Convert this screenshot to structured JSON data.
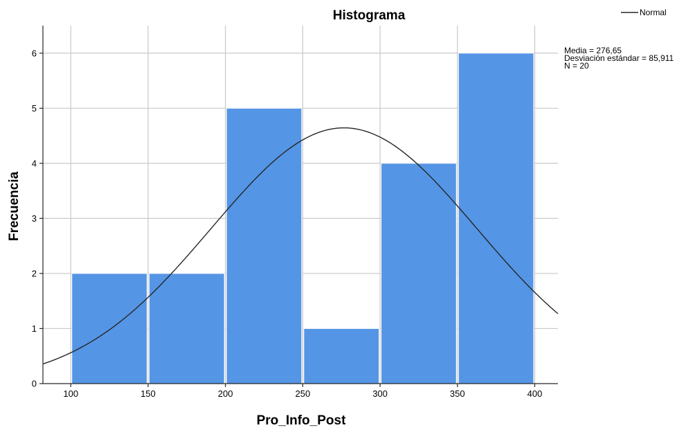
{
  "chart_data": {
    "type": "bar",
    "title": "Histograma",
    "xlabel": "Pro_Info_Post",
    "ylabel": "Frecuencia",
    "bins": [
      {
        "from": 100,
        "to": 150,
        "count": 2
      },
      {
        "from": 150,
        "to": 200,
        "count": 2
      },
      {
        "from": 200,
        "to": 250,
        "count": 5
      },
      {
        "from": 250,
        "to": 300,
        "count": 1
      },
      {
        "from": 300,
        "to": 350,
        "count": 4
      },
      {
        "from": 350,
        "to": 400,
        "count": 6
      }
    ],
    "xlim": [
      82,
      415
    ],
    "ylim": [
      0,
      6.5
    ],
    "xticks": [
      100,
      150,
      200,
      250,
      300,
      350,
      400
    ],
    "yticks": [
      0,
      1,
      2,
      3,
      4,
      5,
      6
    ],
    "grid": true,
    "normal_curve": {
      "mean": 276.65,
      "std": 85.911,
      "n": 20,
      "bin_width": 50
    },
    "legend": {
      "label": "Normal",
      "position": "top-right"
    },
    "stats": [
      "Media = 276,65",
      "Desviación estándar = 85,911",
      "N = 20"
    ],
    "colors": {
      "bar": "#5595e5",
      "bar_edge": "#ffffff",
      "grid": "#c8c8c8",
      "curve": "#262626",
      "axis": "#262626"
    }
  }
}
